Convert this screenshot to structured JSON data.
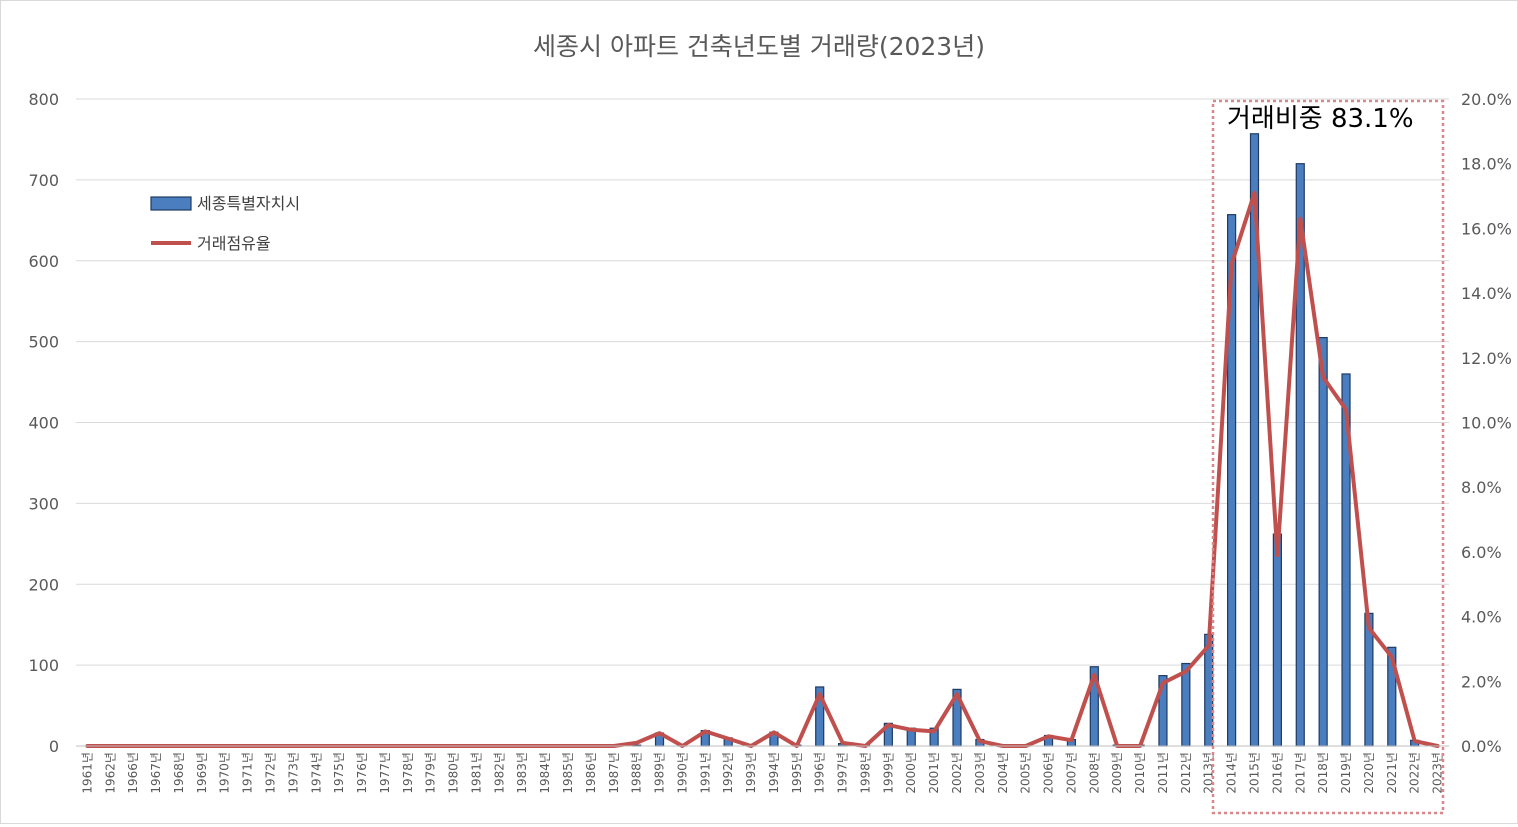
{
  "chart_data": {
    "type": "bar",
    "title": "세종시 아파트 건축년도별 거래량(2023년)",
    "annotation": "거래비중 83.1%",
    "categories": [
      "1961년",
      "1962년",
      "1966년",
      "1967년",
      "1968년",
      "1969년",
      "1970년",
      "1971년",
      "1972년",
      "1973년",
      "1974년",
      "1975년",
      "1976년",
      "1977년",
      "1978년",
      "1979년",
      "1980년",
      "1981년",
      "1982년",
      "1983년",
      "1984년",
      "1985년",
      "1986년",
      "1987년",
      "1988년",
      "1989년",
      "1990년",
      "1991년",
      "1992년",
      "1993년",
      "1994년",
      "1995년",
      "1996년",
      "1997년",
      "1998년",
      "1999년",
      "2000년",
      "2001년",
      "2002년",
      "2003년",
      "2004년",
      "2005년",
      "2006년",
      "2007년",
      "2008년",
      "2009년",
      "2010년",
      "2011년",
      "2012년",
      "2013년",
      "2014년",
      "2015년",
      "2016년",
      "2017년",
      "2018년",
      "2019년",
      "2020년",
      "2021년",
      "2022년",
      "2023년"
    ],
    "series": [
      {
        "name": "세종특별자치시",
        "kind": "bar",
        "axis": "left",
        "color": "#4a7ebf",
        "values": [
          0,
          0,
          0,
          0,
          0,
          0,
          0,
          0,
          0,
          0,
          0,
          0,
          0,
          0,
          0,
          0,
          0,
          0,
          0,
          0,
          0,
          0,
          0,
          0,
          1,
          16,
          1,
          19,
          10,
          1,
          17,
          1,
          73,
          3,
          1,
          28,
          22,
          22,
          70,
          8,
          1,
          1,
          13,
          8,
          98,
          1,
          1,
          87,
          102,
          138,
          657,
          757,
          262,
          720,
          505,
          460,
          164,
          122,
          7,
          0
        ]
      },
      {
        "name": "거래점유율",
        "kind": "line",
        "axis": "right",
        "color": "#c0504d",
        "values": [
          0,
          0,
          0,
          0,
          0,
          0,
          0,
          0,
          0,
          0,
          0,
          0,
          0,
          0,
          0,
          0,
          0,
          0,
          0,
          0,
          0,
          0,
          0,
          0,
          0.1,
          0.4,
          0.0,
          0.45,
          0.23,
          0.0,
          0.42,
          0.0,
          1.6,
          0.1,
          0.0,
          0.65,
          0.5,
          0.45,
          1.6,
          0.15,
          0.0,
          0.0,
          0.3,
          0.18,
          2.2,
          0.0,
          0.0,
          1.95,
          2.3,
          3.1,
          14.9,
          17.1,
          5.9,
          16.3,
          11.4,
          10.4,
          3.65,
          2.75,
          0.15,
          0.0
        ]
      }
    ],
    "y_left": {
      "min": 0,
      "max": 800,
      "ticks": [
        "0",
        "100",
        "200",
        "300",
        "400",
        "500",
        "600",
        "700",
        "800"
      ]
    },
    "y_right": {
      "min": 0,
      "max": 20,
      "ticks": [
        "0.0%",
        "2.0%",
        "4.0%",
        "6.0%",
        "8.0%",
        "10.0%",
        "12.0%",
        "14.0%",
        "16.0%",
        "18.0%",
        "20.0%"
      ]
    },
    "grid": true,
    "legend_position": "upper-left"
  }
}
